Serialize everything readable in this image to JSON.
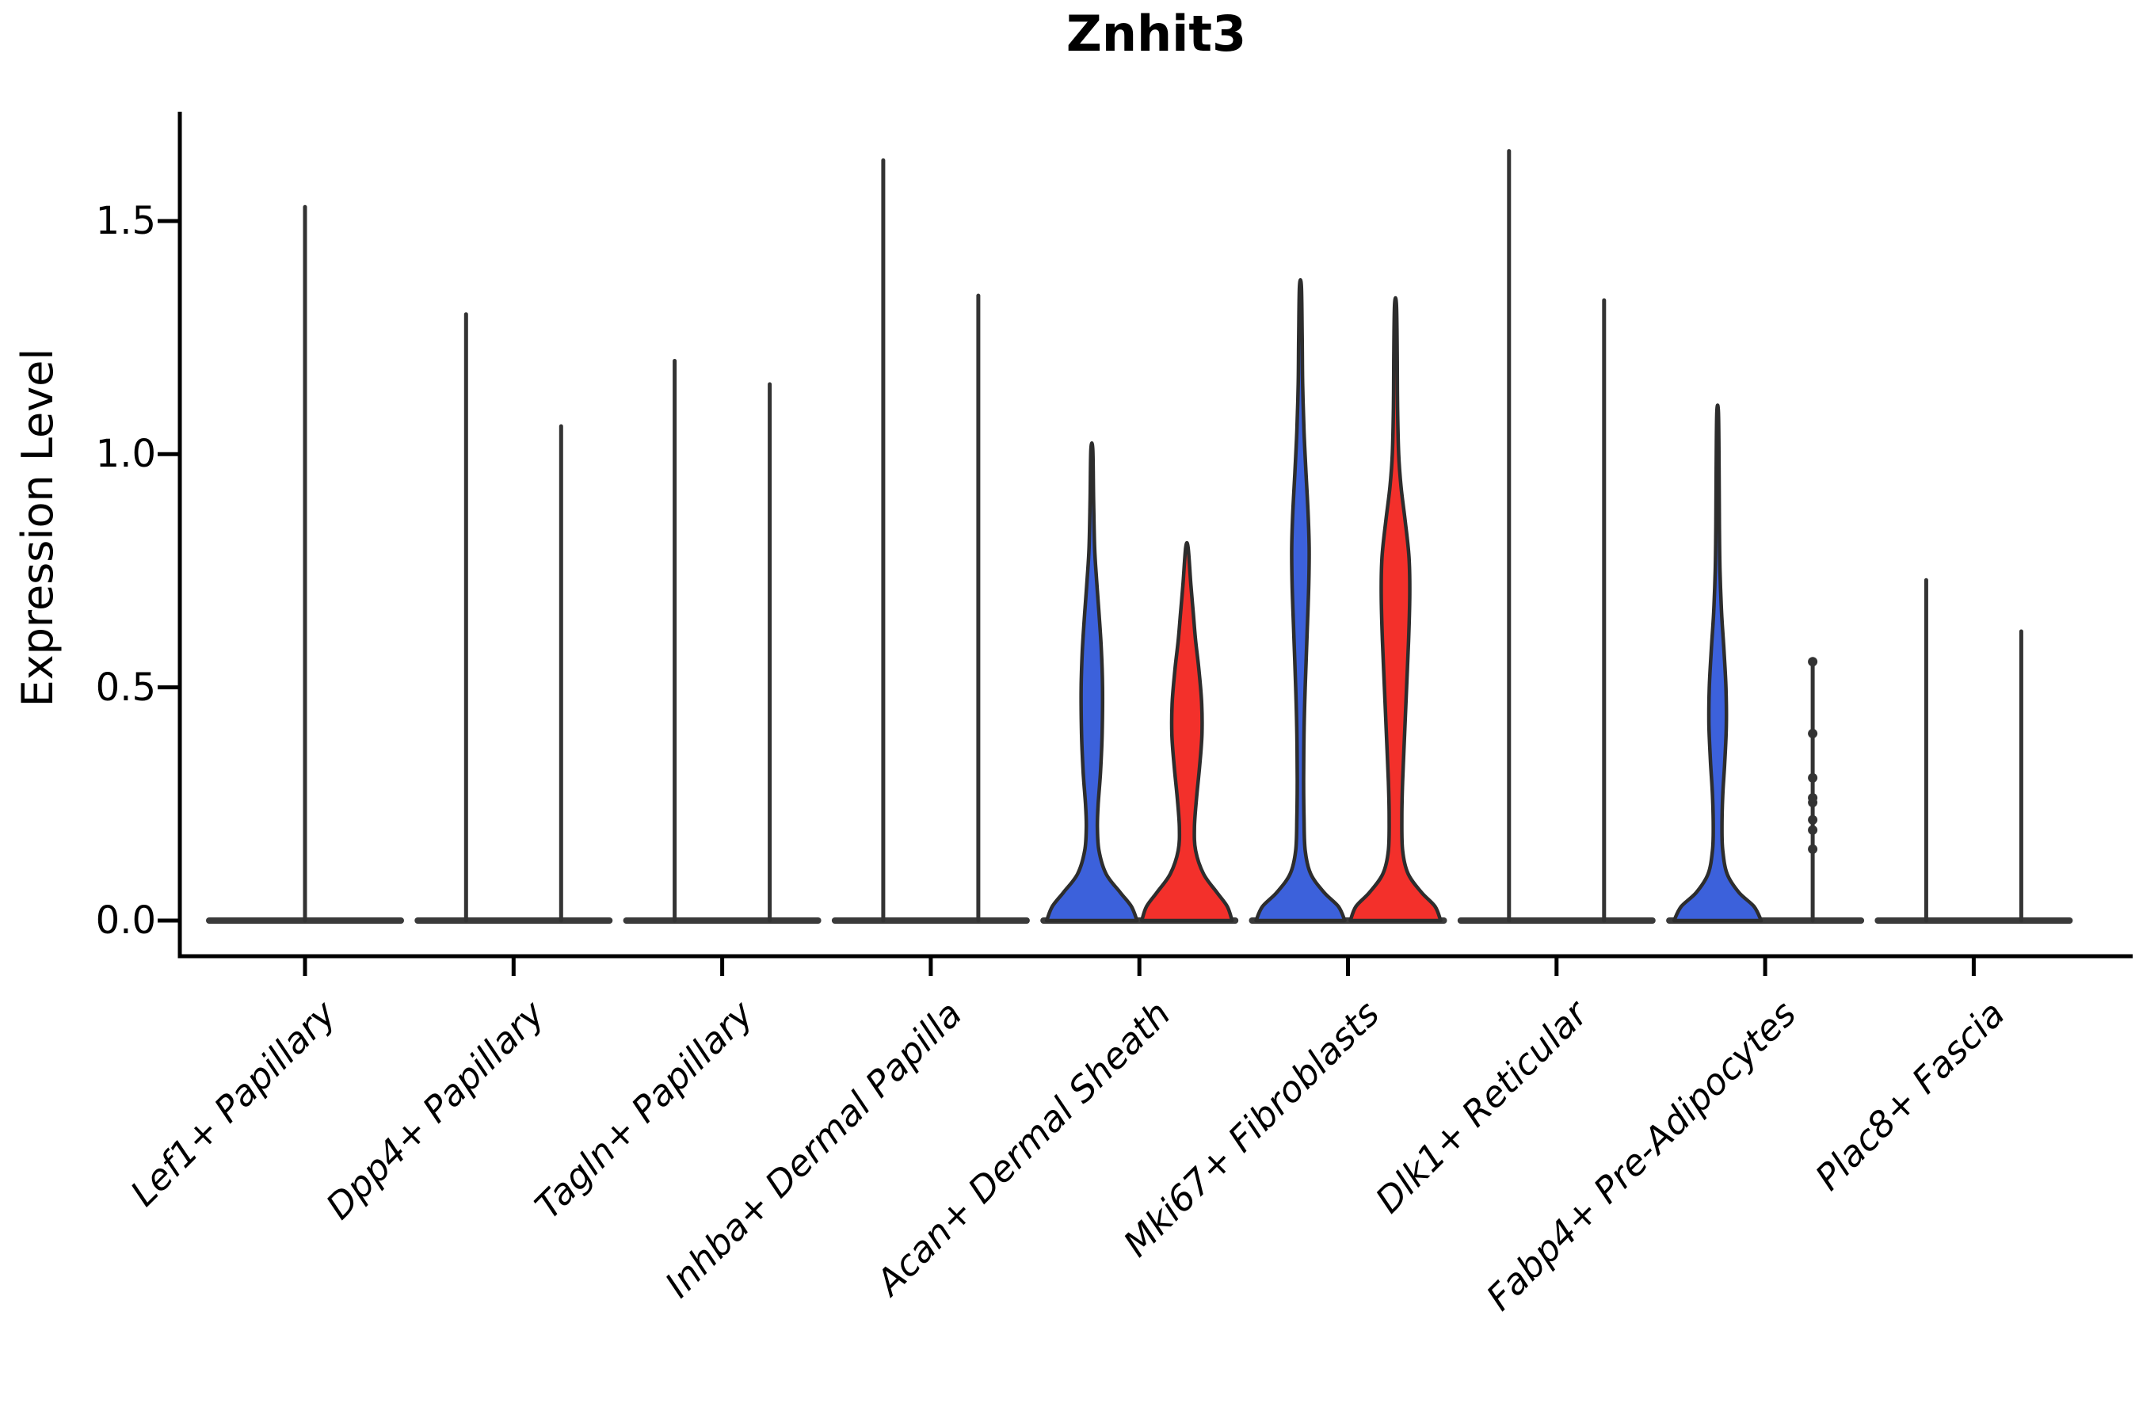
{
  "title": "Znhit3",
  "y_axis": {
    "label": "Expression Level"
  },
  "colors": {
    "violin_blue": "#3C61DB",
    "violin_red": "#F3302B",
    "violin_edge": "#2D2D2D",
    "spike": "#333333",
    "baseline": "#3A3A3A",
    "axis": "#000000",
    "background": "#FFFFFF"
  },
  "chart_data": {
    "type": "violin",
    "title": "Znhit3",
    "ylabel": "Expression Level",
    "ylim": [
      0,
      1.73
    ],
    "yticks": [
      1.5,
      1.0,
      0.5,
      0.0
    ],
    "grid": false,
    "legend": "none",
    "series": [
      {
        "name": "group-blue",
        "color_key": "violin_blue"
      },
      {
        "name": "group-red",
        "color_key": "violin_red"
      }
    ],
    "profile_units": "halfwidth_px_per_expression_value",
    "categories": [
      {
        "label": "Lef1+ Papillary",
        "violins": [
          {
            "kind": "spike",
            "offset": 0,
            "max": 1.53
          }
        ]
      },
      {
        "label": "Dpp4+ Papillary",
        "violins": [
          {
            "kind": "spike",
            "offset": -60,
            "max": 1.3
          },
          {
            "kind": "spike",
            "offset": 60,
            "max": 1.06
          }
        ]
      },
      {
        "label": "Tagln+ Papillary",
        "violins": [
          {
            "kind": "spike",
            "offset": -60,
            "max": 1.2
          },
          {
            "kind": "spike",
            "offset": 60,
            "max": 1.15
          }
        ]
      },
      {
        "label": "Inhba+ Dermal Papilla",
        "violins": [
          {
            "kind": "spike",
            "offset": -60,
            "max": 1.63
          },
          {
            "kind": "spike",
            "offset": 60,
            "max": 1.34
          }
        ]
      },
      {
        "label": "Acan+ Dermal Sheath",
        "violins": [
          {
            "kind": "body",
            "offset": -60,
            "max": 1.01,
            "fill": "violin_blue",
            "profile": [
              [
                0,
                57
              ],
              [
                0.03,
                50
              ],
              [
                0.06,
                36
              ],
              [
                0.1,
                18
              ],
              [
                0.15,
                9
              ],
              [
                0.2,
                7
              ],
              [
                0.25,
                8
              ],
              [
                0.32,
                11
              ],
              [
                0.4,
                13
              ],
              [
                0.5,
                13.5
              ],
              [
                0.58,
                12
              ],
              [
                0.66,
                9
              ],
              [
                0.73,
                6
              ],
              [
                0.8,
                3.5
              ],
              [
                0.9,
                2.2
              ],
              [
                1.01,
                1.2
              ]
            ]
          },
          {
            "kind": "body",
            "offset": 60,
            "max": 0.8,
            "fill": "violin_red",
            "profile": [
              [
                0,
                57
              ],
              [
                0.03,
                51
              ],
              [
                0.06,
                38
              ],
              [
                0.1,
                21
              ],
              [
                0.15,
                11
              ],
              [
                0.2,
                9.5
              ],
              [
                0.26,
                12
              ],
              [
                0.33,
                16
              ],
              [
                0.4,
                19
              ],
              [
                0.47,
                18.5
              ],
              [
                0.54,
                15
              ],
              [
                0.6,
                11
              ],
              [
                0.66,
                8
              ],
              [
                0.72,
                5
              ],
              [
                0.8,
                1.5
              ]
            ]
          }
        ]
      },
      {
        "label": "Mki67+ Fibroblasts",
        "violins": [
          {
            "kind": "body",
            "offset": -60,
            "max": 1.36,
            "fill": "violin_blue",
            "profile": [
              [
                0,
                56
              ],
              [
                0.03,
                48
              ],
              [
                0.06,
                30
              ],
              [
                0.1,
                13
              ],
              [
                0.15,
                6
              ],
              [
                0.22,
                4.5
              ],
              [
                0.3,
                4
              ],
              [
                0.4,
                4.5
              ],
              [
                0.5,
                6
              ],
              [
                0.62,
                8.5
              ],
              [
                0.72,
                10.5
              ],
              [
                0.8,
                11
              ],
              [
                0.88,
                9.5
              ],
              [
                0.96,
                7
              ],
              [
                1.05,
                4.5
              ],
              [
                1.15,
                2.8
              ],
              [
                1.25,
                2.2
              ],
              [
                1.36,
                1.2
              ]
            ]
          },
          {
            "kind": "body",
            "offset": 60,
            "max": 1.32,
            "fill": "violin_red",
            "profile": [
              [
                0,
                57
              ],
              [
                0.03,
                50
              ],
              [
                0.06,
                33
              ],
              [
                0.1,
                16
              ],
              [
                0.15,
                9
              ],
              [
                0.22,
                8
              ],
              [
                0.3,
                9
              ],
              [
                0.4,
                11.5
              ],
              [
                0.5,
                14
              ],
              [
                0.6,
                16.5
              ],
              [
                0.7,
                18
              ],
              [
                0.78,
                17
              ],
              [
                0.86,
                12
              ],
              [
                0.93,
                7
              ],
              [
                1.0,
                4
              ],
              [
                1.1,
                2.6
              ],
              [
                1.2,
                2.2
              ],
              [
                1.32,
                1.2
              ]
            ]
          }
        ]
      },
      {
        "label": "Dlk1+ Reticular",
        "violins": [
          {
            "kind": "spike",
            "offset": -60,
            "max": 1.65
          },
          {
            "kind": "spike",
            "offset": 60,
            "max": 1.33
          }
        ]
      },
      {
        "label": "Fabp4+ Pre-Adipocytes",
        "violins": [
          {
            "kind": "body",
            "offset": -60,
            "max": 1.09,
            "fill": "violin_blue",
            "profile": [
              [
                0,
                55
              ],
              [
                0.03,
                46
              ],
              [
                0.06,
                27
              ],
              [
                0.1,
                12
              ],
              [
                0.15,
                6.5
              ],
              [
                0.2,
                5.5
              ],
              [
                0.27,
                6.5
              ],
              [
                0.34,
                9
              ],
              [
                0.42,
                11
              ],
              [
                0.5,
                10.5
              ],
              [
                0.58,
                8
              ],
              [
                0.66,
                5
              ],
              [
                0.75,
                3
              ],
              [
                0.85,
                2.2
              ],
              [
                0.97,
                1.8
              ],
              [
                1.09,
                1
              ]
            ]
          },
          {
            "kind": "beads",
            "offset": 60,
            "max": 0.555,
            "beads": [
              0.153,
              0.194,
              0.216,
              0.253,
              0.263,
              0.306,
              0.401,
              0.555
            ]
          }
        ]
      },
      {
        "label": "Plac8+ Fascia",
        "violins": [
          {
            "kind": "spike",
            "offset": -60,
            "max": 0.73
          },
          {
            "kind": "spike",
            "offset": 60,
            "max": 0.62
          }
        ]
      }
    ]
  }
}
